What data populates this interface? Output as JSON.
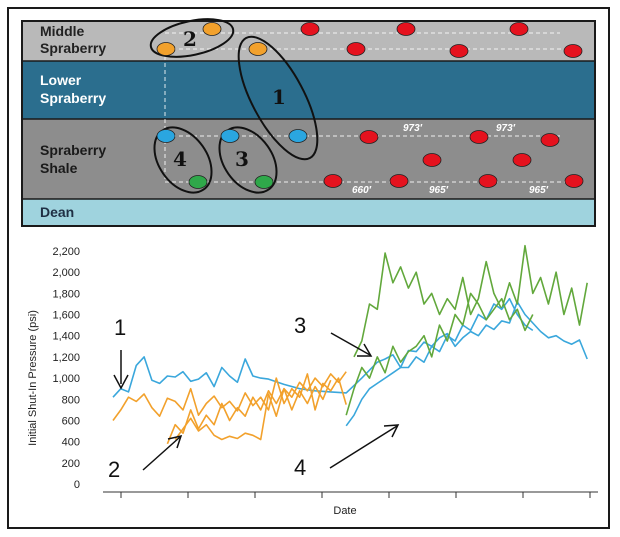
{
  "schematic": {
    "layers": [
      {
        "name_line1": "Middle",
        "name_line2": "Spraberry",
        "color": "#b9b9b9",
        "text_color": "#222222"
      },
      {
        "name_line1": "Lower",
        "name_line2": "Spraberry",
        "color": "#2b6e8e",
        "text_color": "#ffffff"
      },
      {
        "name_line1": "Spraberry",
        "name_line2": "Shale",
        "color": "#8d8d8d",
        "text_color": "#1a1a1a"
      },
      {
        "name_line1": "Dean",
        "name_line2": "",
        "color": "#9fd3de",
        "text_color": "#1f2f44"
      }
    ],
    "group_labels": [
      "2",
      "1",
      "4",
      "3"
    ],
    "spacing_labels": [
      "973′",
      "973′",
      "660′",
      "965′",
      "965′"
    ],
    "well_colors": {
      "orange": "#f2a12c",
      "blue": "#2aa6e0",
      "green": "#2fa84a",
      "red": "#e5121e"
    }
  },
  "chart_data": {
    "type": "line",
    "xlabel": "Date",
    "ylabel": "Initial Shut-In Pressure (psi)",
    "ylim": [
      0,
      2200
    ],
    "yticks": [
      "0",
      "200",
      "400",
      "600",
      "800",
      "1,000",
      "1,200",
      "1,400",
      "1,600",
      "1,800",
      "2,000",
      "2,200"
    ],
    "x_tick_count": 8,
    "x_unit": "months",
    "xlim": [
      0,
      62
    ],
    "series": [
      {
        "group": "1",
        "color": "#3aa7dc",
        "x": [
          0,
          1,
          2,
          3,
          4,
          5,
          6,
          7,
          8,
          9,
          10,
          11,
          12,
          13,
          14,
          15,
          16,
          17,
          18,
          19,
          20,
          22,
          24,
          26,
          28,
          30,
          32,
          34,
          35,
          36,
          37,
          38,
          39,
          40,
          41,
          42,
          43,
          44,
          45,
          46,
          47,
          48,
          49,
          50,
          51,
          52,
          53,
          54,
          55,
          56,
          57,
          58,
          59,
          60,
          61
        ],
        "values": [
          820,
          900,
          870,
          1120,
          1200,
          980,
          950,
          1020,
          1010,
          1060,
          970,
          990,
          1050,
          920,
          1100,
          1020,
          960,
          1180,
          1020,
          1000,
          990,
          940,
          900,
          880,
          870,
          860,
          1000,
          1150,
          1180,
          1220,
          1100,
          1260,
          1250,
          1340,
          1300,
          1380,
          1420,
          1300,
          1380,
          1440,
          1400,
          1500,
          1460,
          1540,
          1520,
          1720,
          1600,
          1520,
          1440,
          1380,
          1400,
          1350,
          1320,
          1360,
          1180
        ]
      },
      {
        "group": "2",
        "color": "#f2a12c",
        "x": [
          0,
          1,
          2,
          3,
          4,
          5,
          6,
          7,
          8,
          9,
          10,
          11,
          12,
          13,
          14,
          15,
          16,
          17,
          18,
          19,
          20,
          21,
          22,
          23,
          24,
          25,
          26,
          27,
          28,
          29,
          30
        ],
        "values": [
          600,
          700,
          820,
          780,
          850,
          720,
          640,
          810,
          780,
          700,
          900,
          650,
          760,
          830,
          720,
          780,
          690,
          860,
          740,
          820,
          700,
          1000,
          760,
          900,
          820,
          1040,
          700,
          950,
          880,
          1000,
          750
        ]
      },
      {
        "group": "2",
        "color": "#f2a12c",
        "x": [
          7,
          8,
          9,
          10,
          11,
          12,
          13,
          14,
          15,
          16,
          17,
          18,
          19,
          20,
          21,
          22,
          23,
          24,
          25,
          26,
          27,
          28,
          29,
          30
        ],
        "values": [
          380,
          560,
          480,
          700,
          520,
          650,
          560,
          760,
          600,
          720,
          640,
          820,
          700,
          880,
          760,
          900,
          820,
          960,
          880,
          1000,
          920,
          1040,
          960,
          1060
        ]
      },
      {
        "group": "2",
        "color": "#f2a12c",
        "x": [
          8,
          9,
          10,
          11,
          12,
          13,
          14,
          15,
          16,
          17,
          18,
          19,
          20,
          21,
          22,
          23,
          24,
          25,
          26,
          27,
          28
        ],
        "values": [
          420,
          520,
          620,
          500,
          560,
          460,
          420,
          450,
          430,
          480,
          460,
          420,
          850,
          640,
          900,
          700,
          880,
          760,
          920,
          800,
          980
        ]
      },
      {
        "group": "3",
        "color": "#62a83c",
        "x": [
          31,
          32,
          33,
          34,
          35,
          36,
          37,
          38,
          39,
          40,
          41,
          42,
          43,
          44,
          45,
          46,
          47,
          48,
          49,
          50,
          51,
          52,
          53,
          54,
          55,
          56,
          57,
          58,
          59,
          60,
          61
        ],
        "values": [
          1200,
          1350,
          1700,
          1650,
          2180,
          1900,
          2050,
          1850,
          2000,
          1700,
          1800,
          1600,
          1750,
          1650,
          1950,
          1600,
          1750,
          2100,
          1800,
          1650,
          1900,
          1700,
          2250,
          1800,
          1950,
          1700,
          2000,
          1600,
          1850,
          1500,
          1900
        ]
      },
      {
        "group": "4",
        "color": "#3aa7dc",
        "x": [
          30,
          31,
          32,
          33,
          34,
          35,
          36,
          37,
          38,
          39,
          40,
          41,
          42,
          43,
          44,
          45,
          46,
          47,
          48,
          49,
          50,
          51,
          52,
          53,
          54
        ],
        "values": [
          550,
          650,
          800,
          900,
          950,
          1000,
          1050,
          1100,
          1100,
          1200,
          1150,
          1300,
          1250,
          1400,
          1350,
          1500,
          1450,
          1600,
          1550,
          1700,
          1650,
          1750,
          1600,
          1500,
          1450
        ]
      },
      {
        "group": "4",
        "color": "#62a83c",
        "x": [
          30,
          31,
          32,
          33,
          34,
          35,
          36,
          37,
          38,
          39,
          40,
          41,
          42,
          43,
          44,
          45,
          46,
          47,
          48,
          49,
          50,
          51,
          52,
          53,
          54
        ],
        "values": [
          650,
          900,
          1100,
          1000,
          1200,
          1050,
          1300,
          1150,
          1250,
          1300,
          1400,
          1200,
          1500,
          1350,
          1600,
          1500,
          1800,
          1700,
          1550,
          1650,
          1750,
          1550,
          1650,
          1450,
          1600
        ]
      }
    ],
    "annotations": [
      "1",
      "2",
      "3",
      "4"
    ]
  }
}
